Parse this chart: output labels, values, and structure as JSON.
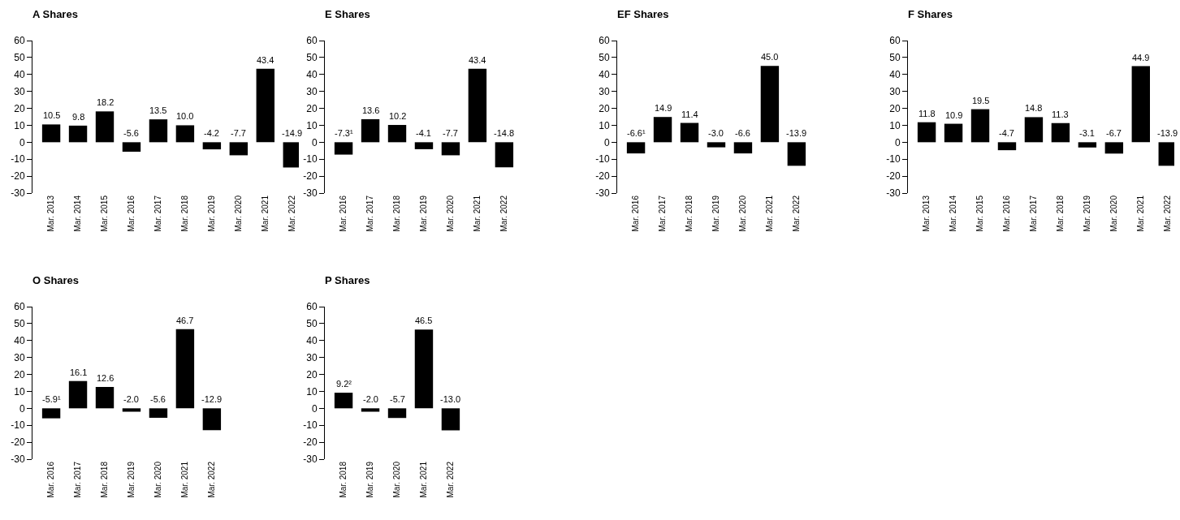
{
  "chart_data": [
    {
      "type": "bar",
      "title": "A Shares",
      "categories": [
        "Mar. 2013",
        "Mar. 2014",
        "Mar. 2015",
        "Mar. 2016",
        "Mar. 2017",
        "Mar. 2018",
        "Mar. 2019",
        "Mar. 2020",
        "Mar. 2021",
        "Mar. 2022"
      ],
      "values": [
        10.5,
        9.8,
        18.2,
        -5.6,
        13.5,
        10.0,
        -4.2,
        -7.7,
        43.4,
        -14.9
      ],
      "value_labels": [
        "10.5",
        "9.8",
        "18.2",
        "-5.6",
        "13.5",
        "10.0",
        "-4.2",
        "-7.7",
        "43.4",
        "-14.9"
      ],
      "color": "#000000",
      "ylim": [
        -30,
        60
      ],
      "yticks": [
        -30,
        -20,
        -10,
        0,
        10,
        20,
        30,
        40,
        50,
        60
      ],
      "grid": false
    },
    {
      "type": "bar",
      "title": "E Shares",
      "categories": [
        "Mar. 2016",
        "Mar. 2017",
        "Mar. 2018",
        "Mar. 2019",
        "Mar. 2020",
        "Mar. 2021",
        "Mar. 2022"
      ],
      "values": [
        -7.3,
        13.6,
        10.2,
        -4.1,
        -7.7,
        43.4,
        -14.8
      ],
      "value_labels": [
        "-7.3¹",
        "13.6",
        "10.2",
        "-4.1",
        "-7.7",
        "43.4",
        "-14.8"
      ],
      "color": "#000000",
      "ylim": [
        -30,
        60
      ],
      "yticks": [
        -30,
        -20,
        -10,
        0,
        10,
        20,
        30,
        40,
        50,
        60
      ],
      "grid": false
    },
    {
      "type": "bar",
      "title": "EF Shares",
      "categories": [
        "Mar. 2016",
        "Mar. 2017",
        "Mar. 2018",
        "Mar. 2019",
        "Mar. 2020",
        "Mar. 2021",
        "Mar. 2022"
      ],
      "values": [
        -6.6,
        14.9,
        11.4,
        -3.0,
        -6.6,
        45.0,
        -13.9
      ],
      "value_labels": [
        "-6.6¹",
        "14.9",
        "11.4",
        "-3.0",
        "-6.6",
        "45.0",
        "-13.9"
      ],
      "color": "#000000",
      "ylim": [
        -30,
        60
      ],
      "yticks": [
        -30,
        -20,
        -10,
        0,
        10,
        20,
        30,
        40,
        50,
        60
      ],
      "grid": false
    },
    {
      "type": "bar",
      "title": "F Shares",
      "categories": [
        "Mar. 2013",
        "Mar. 2014",
        "Mar. 2015",
        "Mar. 2016",
        "Mar. 2017",
        "Mar. 2018",
        "Mar. 2019",
        "Mar. 2020",
        "Mar. 2021",
        "Mar. 2022"
      ],
      "values": [
        11.8,
        10.9,
        19.5,
        -4.7,
        14.8,
        11.3,
        -3.1,
        -6.7,
        44.9,
        -13.9
      ],
      "value_labels": [
        "11.8",
        "10.9",
        "19.5",
        "-4.7",
        "14.8",
        "11.3",
        "-3.1",
        "-6.7",
        "44.9",
        "-13.9"
      ],
      "color": "#000000",
      "ylim": [
        -30,
        60
      ],
      "yticks": [
        -30,
        -20,
        -10,
        0,
        10,
        20,
        30,
        40,
        50,
        60
      ],
      "grid": false
    },
    {
      "type": "bar",
      "title": "O Shares",
      "categories": [
        "Mar. 2016",
        "Mar. 2017",
        "Mar. 2018",
        "Mar. 2019",
        "Mar. 2020",
        "Mar. 2021",
        "Mar. 2022"
      ],
      "values": [
        -5.9,
        16.1,
        12.6,
        -2.0,
        -5.6,
        46.7,
        -12.9
      ],
      "value_labels": [
        "-5.9¹",
        "16.1",
        "12.6",
        "-2.0",
        "-5.6",
        "46.7",
        "-12.9"
      ],
      "color": "#000000",
      "ylim": [
        -30,
        60
      ],
      "yticks": [
        -30,
        -20,
        -10,
        0,
        10,
        20,
        30,
        40,
        50,
        60
      ],
      "grid": false
    },
    {
      "type": "bar",
      "title": "P Shares",
      "categories": [
        "Mar. 2018",
        "Mar. 2019",
        "Mar. 2020",
        "Mar. 2021",
        "Mar. 2022"
      ],
      "values": [
        9.2,
        -2.0,
        -5.7,
        46.5,
        -13.0
      ],
      "value_labels": [
        "9.2²",
        "-2.0",
        "-5.7",
        "46.5",
        "-13.0"
      ],
      "color": "#000000",
      "ylim": [
        -30,
        60
      ],
      "yticks": [
        -30,
        -20,
        -10,
        0,
        10,
        20,
        30,
        40,
        50,
        60
      ],
      "grid": false
    }
  ]
}
